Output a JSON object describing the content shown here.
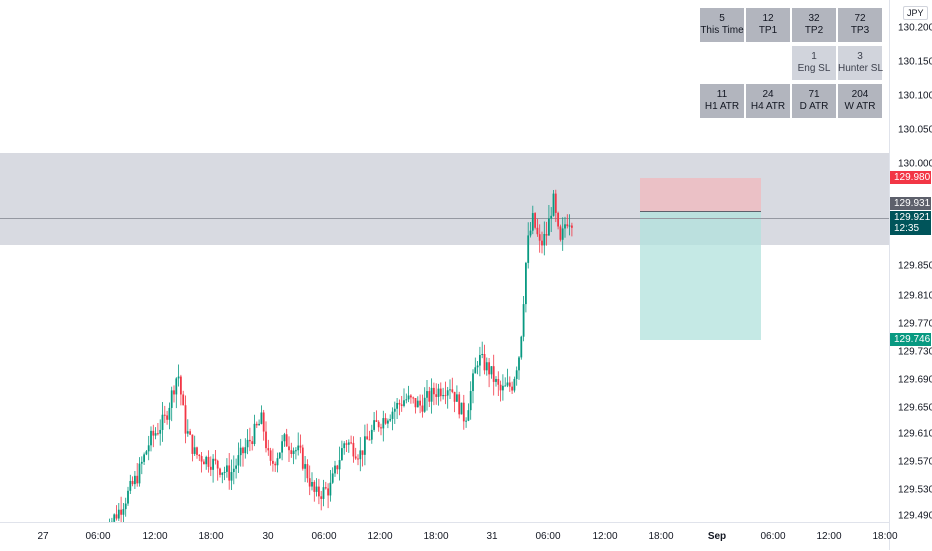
{
  "currency": "JPY",
  "stats_table": {
    "rows": [
      [
        {
          "value": "5",
          "label": "This Time"
        },
        {
          "value": "12",
          "label": "TP1"
        },
        {
          "value": "32",
          "label": "TP2"
        },
        {
          "value": "72",
          "label": "TP3"
        }
      ],
      [
        null,
        null,
        {
          "value": "1",
          "label": "Eng SL"
        },
        {
          "value": "3",
          "label": "Hunter SL"
        }
      ],
      [
        {
          "value": "11",
          "label": "H1 ATR"
        },
        {
          "value": "24",
          "label": "H4 ATR"
        },
        {
          "value": "71",
          "label": "D ATR"
        },
        {
          "value": "204",
          "label": "W ATR"
        }
      ]
    ]
  },
  "price_axis": {
    "ticks": [
      "130.200",
      "130.150",
      "130.100",
      "130.050",
      "130.000",
      "129.850",
      "129.810",
      "129.770",
      "129.730",
      "129.690",
      "129.650",
      "129.610",
      "129.570",
      "129.530",
      "129.490"
    ]
  },
  "badges": {
    "stop": {
      "value": "129.980",
      "color": "#f23645"
    },
    "entry": {
      "value": "129.931",
      "color": "#5d606b"
    },
    "current": {
      "value": "129.921",
      "countdown": "12:35",
      "color": "#00545a"
    },
    "target": {
      "value": "129.746",
      "color": "#089981"
    }
  },
  "time_axis": {
    "ticks": [
      {
        "label": "27",
        "bold": false
      },
      {
        "label": "06:00",
        "bold": false
      },
      {
        "label": "12:00",
        "bold": false
      },
      {
        "label": "18:00",
        "bold": false
      },
      {
        "label": "30",
        "bold": false
      },
      {
        "label": "06:00",
        "bold": false
      },
      {
        "label": "12:00",
        "bold": false
      },
      {
        "label": "18:00",
        "bold": false
      },
      {
        "label": "31",
        "bold": false
      },
      {
        "label": "06:00",
        "bold": false
      },
      {
        "label": "12:00",
        "bold": false
      },
      {
        "label": "18:00",
        "bold": false
      },
      {
        "label": "Sep",
        "bold": true
      },
      {
        "label": "06:00",
        "bold": false
      },
      {
        "label": "12:00",
        "bold": false
      },
      {
        "label": "18:00",
        "bold": false
      }
    ]
  },
  "colors": {
    "up": "#089981",
    "down": "#f23645",
    "zone": "#d1d4dc",
    "risk": "#f7c9cc",
    "reward": "#bfe8e3"
  }
}
